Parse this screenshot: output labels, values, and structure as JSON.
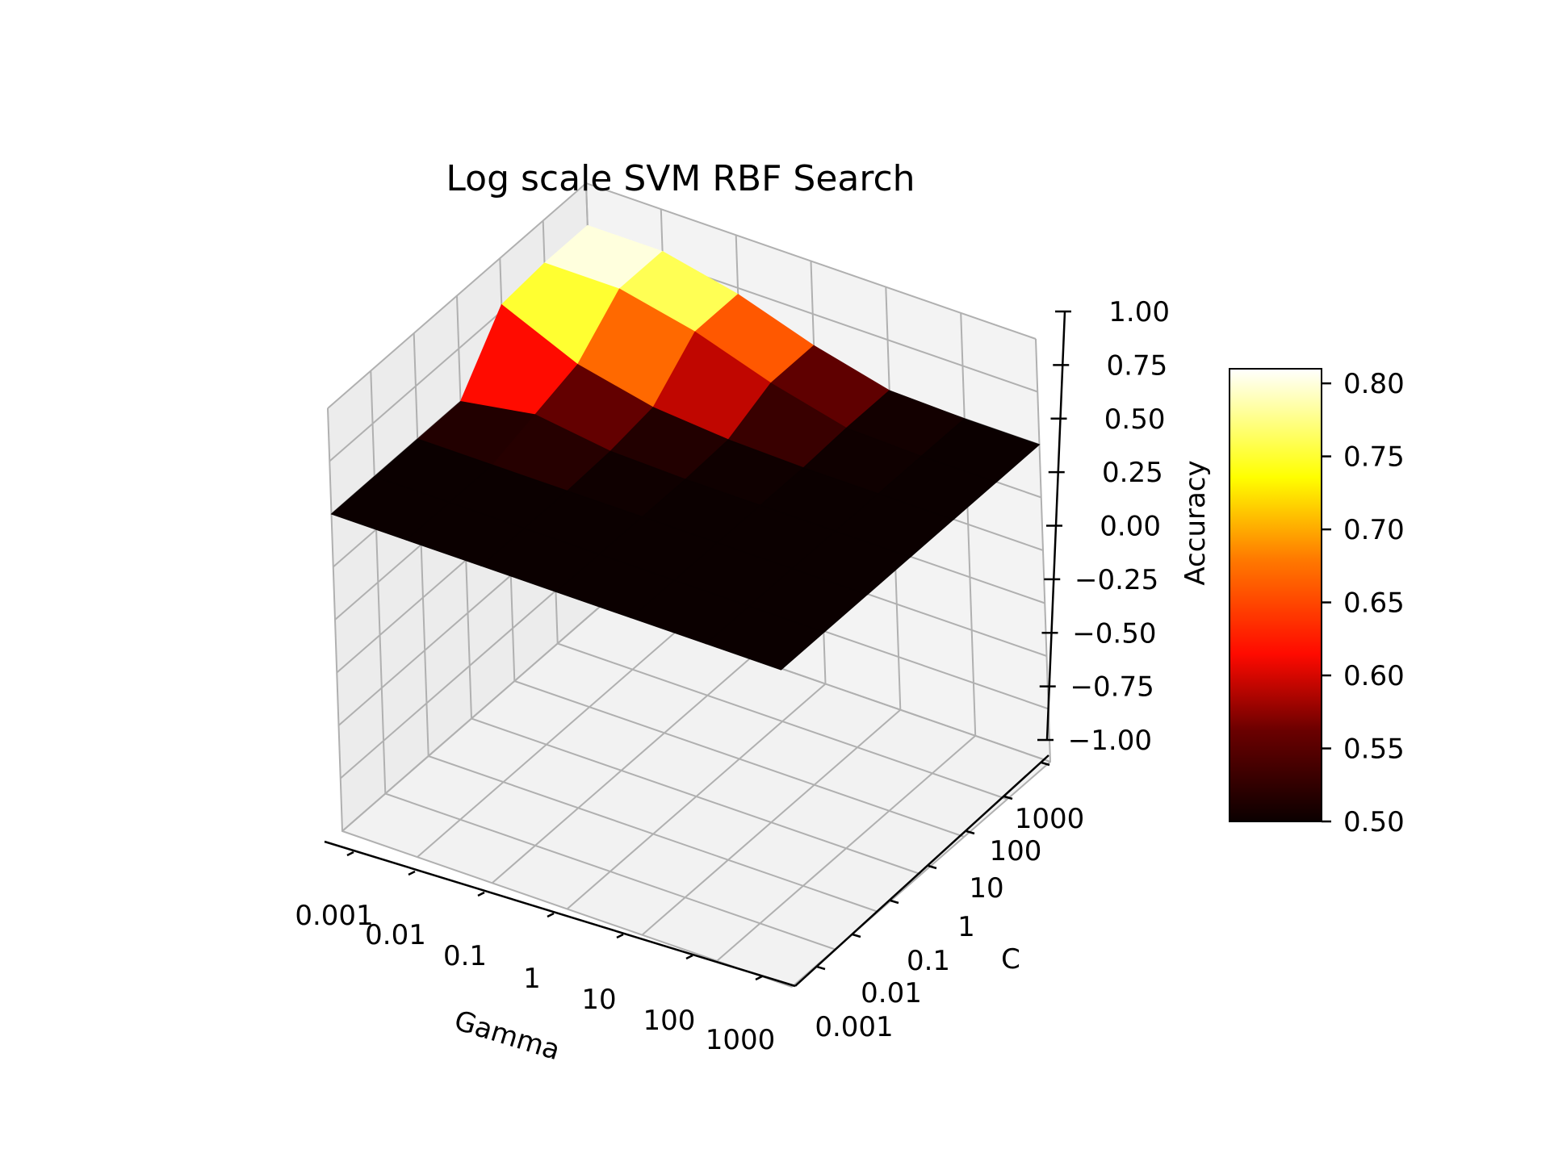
{
  "chart_data": {
    "type": "surface3d",
    "title": "Log scale SVM RBF Search",
    "xlabel": "Gamma",
    "ylabel": "C",
    "zlabel": "Accuracy",
    "x_scale": "log",
    "y_scale": "log",
    "x_ticks": [
      "0.001",
      "0.01",
      "0.1",
      "1",
      "10",
      "100",
      "1000"
    ],
    "y_ticks": [
      "0.001",
      "0.01",
      "0.1",
      "1",
      "10",
      "100",
      "1000"
    ],
    "z_ticks": [
      "−1.00",
      "−0.75",
      "−0.50",
      "−0.25",
      "0.00",
      "0.25",
      "0.50",
      "0.75",
      "1.00"
    ],
    "zlim": [
      -1.0,
      1.0
    ],
    "gamma": [
      0.001,
      0.01,
      0.1,
      1,
      10,
      100,
      1000
    ],
    "C": [
      0.001,
      0.01,
      0.1,
      1,
      10,
      100,
      1000
    ],
    "accuracy_note": "rows correspond to C, columns to Gamma",
    "accuracy": [
      [
        0.5,
        0.5,
        0.5,
        0.5,
        0.5,
        0.5,
        0.5
      ],
      [
        0.5,
        0.5,
        0.5,
        0.5,
        0.5,
        0.5,
        0.5
      ],
      [
        0.5,
        0.5,
        0.5,
        0.5,
        0.5,
        0.5,
        0.5
      ],
      [
        0.5,
        0.56,
        0.51,
        0.5,
        0.5,
        0.5,
        0.5
      ],
      [
        0.78,
        0.62,
        0.54,
        0.51,
        0.5,
        0.5,
        0.5
      ],
      [
        0.8,
        0.8,
        0.72,
        0.6,
        0.51,
        0.5,
        0.5
      ],
      [
        0.8,
        0.8,
        0.72,
        0.6,
        0.51,
        0.5,
        0.5
      ]
    ],
    "colorbar": {
      "colormap": "hot",
      "range": [
        0.5,
        0.81
      ],
      "ticks": [
        "0.50",
        "0.55",
        "0.60",
        "0.65",
        "0.70",
        "0.75",
        "0.80"
      ]
    },
    "grid": true
  }
}
